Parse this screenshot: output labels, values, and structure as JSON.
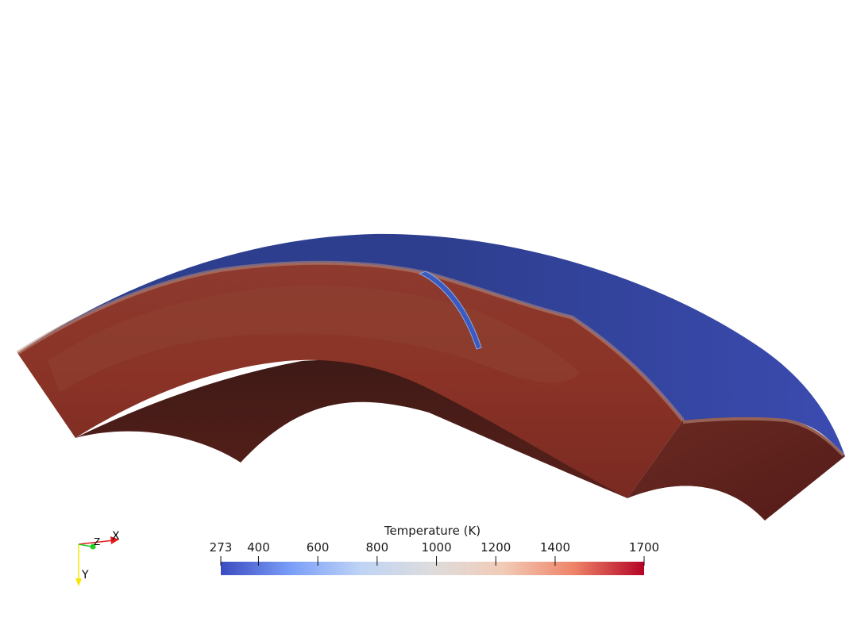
{
  "colorbar": {
    "title": "Temperature (K)",
    "min": 273,
    "max": 1700,
    "ticks": [
      {
        "value": 273,
        "label": "273"
      },
      {
        "value": 400,
        "label": "400"
      },
      {
        "value": 600,
        "label": "600"
      },
      {
        "value": 800,
        "label": "800"
      },
      {
        "value": 1000,
        "label": "1000"
      },
      {
        "value": 1200,
        "label": "1200"
      },
      {
        "value": 1400,
        "label": "1400"
      },
      {
        "value": 1700,
        "label": "1700"
      }
    ],
    "colormap": [
      "#3b4cc0",
      "#7b9ff9",
      "#c0d4f5",
      "#dddcdc",
      "#f2cbb7",
      "#ee8468",
      "#b40426"
    ]
  },
  "orientation_axes": {
    "x_label": "X",
    "y_label": "Y",
    "z_label": "Z",
    "x_color": "#e31a1c",
    "y_color": "#f5e50a",
    "z_color": "#22cc22"
  },
  "model_colors": {
    "cold_surface": "#33449a",
    "hot_mantle": "#8a3228",
    "inner_shadow": "#4a1c18",
    "side_face": "#5a221d"
  }
}
